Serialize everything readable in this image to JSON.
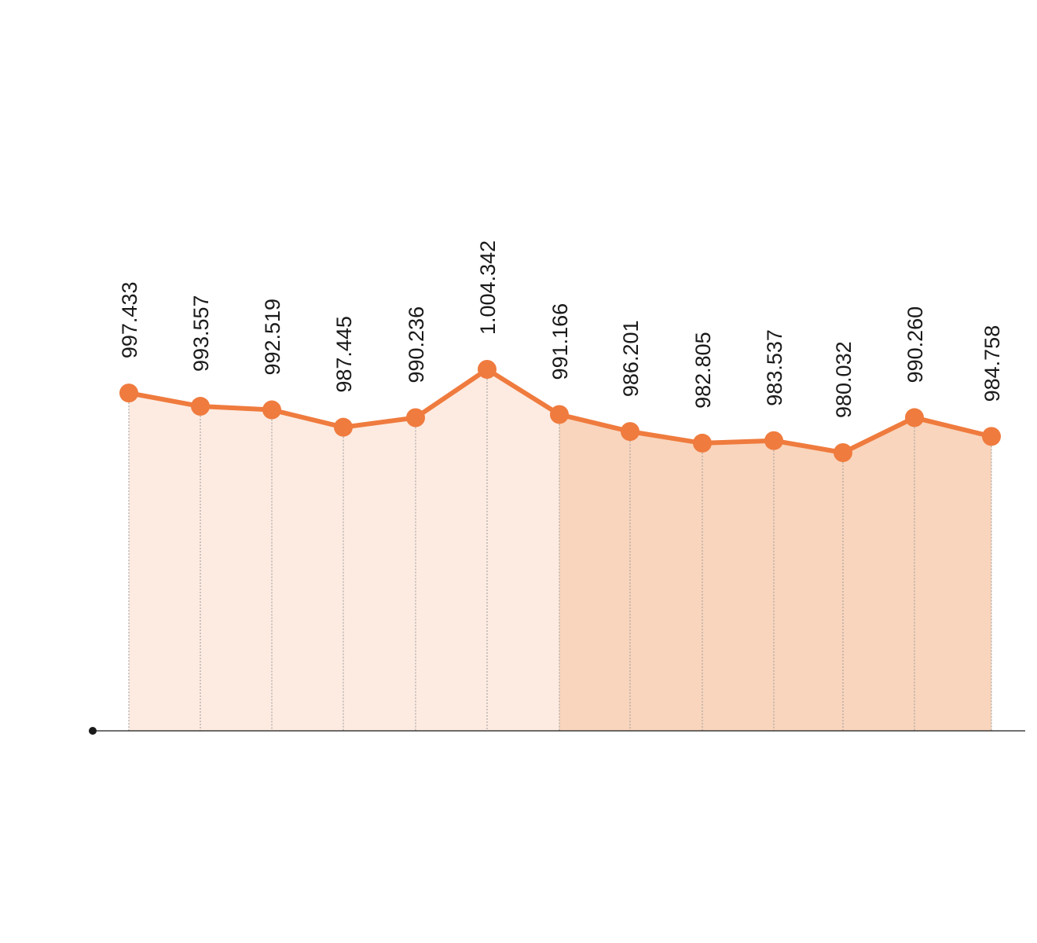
{
  "chart_data": {
    "type": "area",
    "title": "",
    "xlabel": "",
    "ylabel": "",
    "ylim": [
      0,
      1004.342
    ],
    "grid": false,
    "legend": "none",
    "categories": [
      "",
      "",
      "",
      "",
      "",
      "",
      "",
      "",
      "",
      "",
      "",
      "",
      ""
    ],
    "series": [
      {
        "values": [
          997.433,
          993.557,
          992.519,
          987.445,
          990.236,
          1004.342,
          991.166,
          986.201,
          982.805,
          983.537,
          980.032,
          990.26,
          984.758
        ],
        "labels": [
          "997.433",
          "993.557",
          "992.519",
          "987.445",
          "990.236",
          "1.004.342",
          "991.166",
          "986.201",
          "982.805",
          "983.537",
          "980.032",
          "990.260",
          "984.758"
        ]
      }
    ],
    "highlight_start_index": 6,
    "colors": {
      "line": "#ef7b3e",
      "fill_light": "#fdebe1",
      "fill_dark": "#f9d5bd",
      "axis": "#1a1a1a",
      "guide": "#9a9a9a",
      "label": "#1a1a1a"
    }
  }
}
